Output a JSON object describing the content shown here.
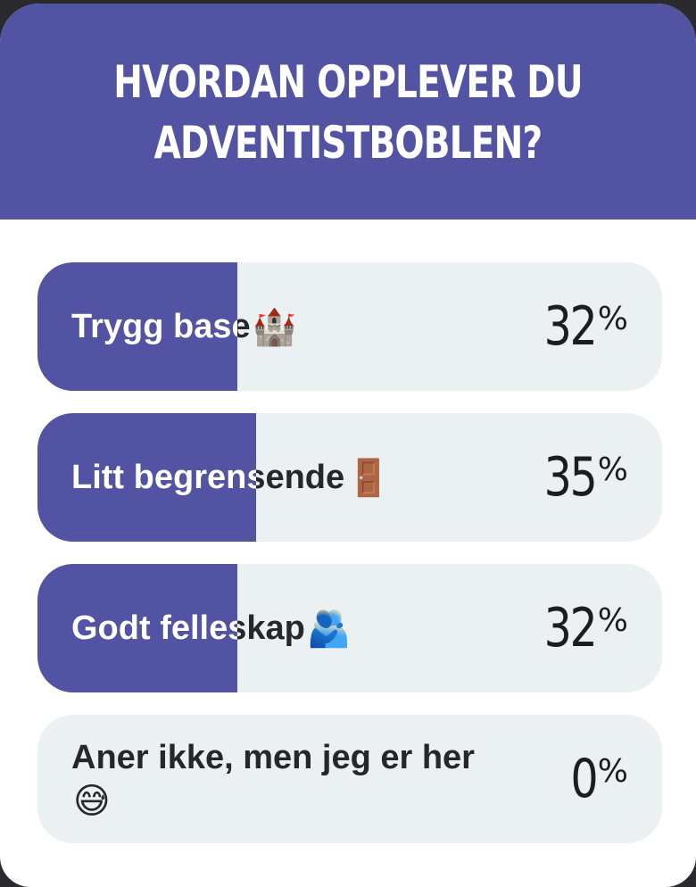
{
  "poll": {
    "title_lines": [
      "HVORDAN OPPLEVER DU",
      "ADVENTISTBOBLEN?"
    ],
    "accent_color": "#5353a4",
    "track_color": "#ebf0f3",
    "options": [
      {
        "label": "Trygg base",
        "emoji": "🏰",
        "emoji_name": "castle-icon",
        "percent": 32,
        "percent_text": "32",
        "percent_sign": "%"
      },
      {
        "label": "Litt begrensende",
        "emoji": "🚪",
        "emoji_name": "door-icon",
        "percent": 35,
        "percent_text": "35",
        "percent_sign": "%"
      },
      {
        "label": "Godt felleskap",
        "emoji": "🫂",
        "emoji_name": "people-hugging-icon",
        "percent": 32,
        "percent_text": "32",
        "percent_sign": "%"
      },
      {
        "label": "Aner ikke, men jeg er her",
        "emoji": "😅",
        "emoji_name": "grinning-sweat-icon",
        "percent": 0,
        "percent_text": "0",
        "percent_sign": "%"
      }
    ]
  }
}
